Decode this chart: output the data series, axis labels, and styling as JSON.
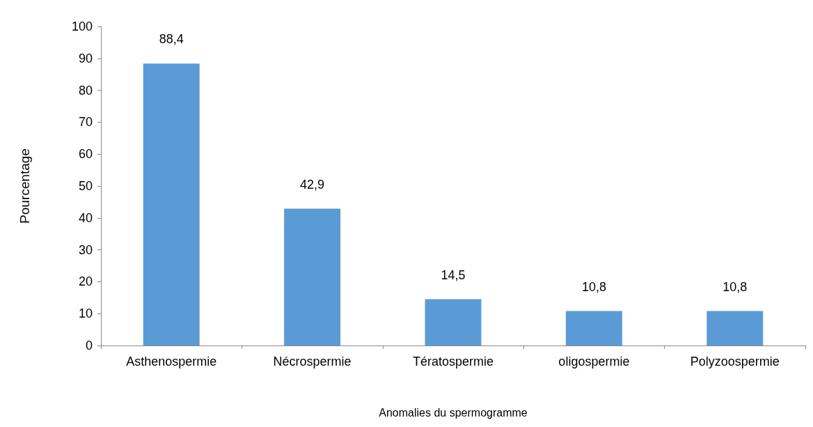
{
  "chart_data": {
    "type": "bar",
    "xlabel": "Anomalies du spermogramme",
    "ylabel": "Pourcentage",
    "categories": [
      "Asthenospermie",
      "Nécrospermie",
      "Tératospermie",
      "oligospermie",
      "Polyzoospermie"
    ],
    "values": [
      88.4,
      42.9,
      14.5,
      10.8,
      10.8
    ],
    "value_labels": [
      "88,4",
      "42,9",
      "14,5",
      "10,8",
      "10,8"
    ],
    "color": "#5b9bd5",
    "ylim": [
      0,
      100
    ],
    "yticks": [
      0,
      10,
      20,
      30,
      40,
      50,
      60,
      70,
      80,
      90,
      100
    ],
    "grid": false
  }
}
